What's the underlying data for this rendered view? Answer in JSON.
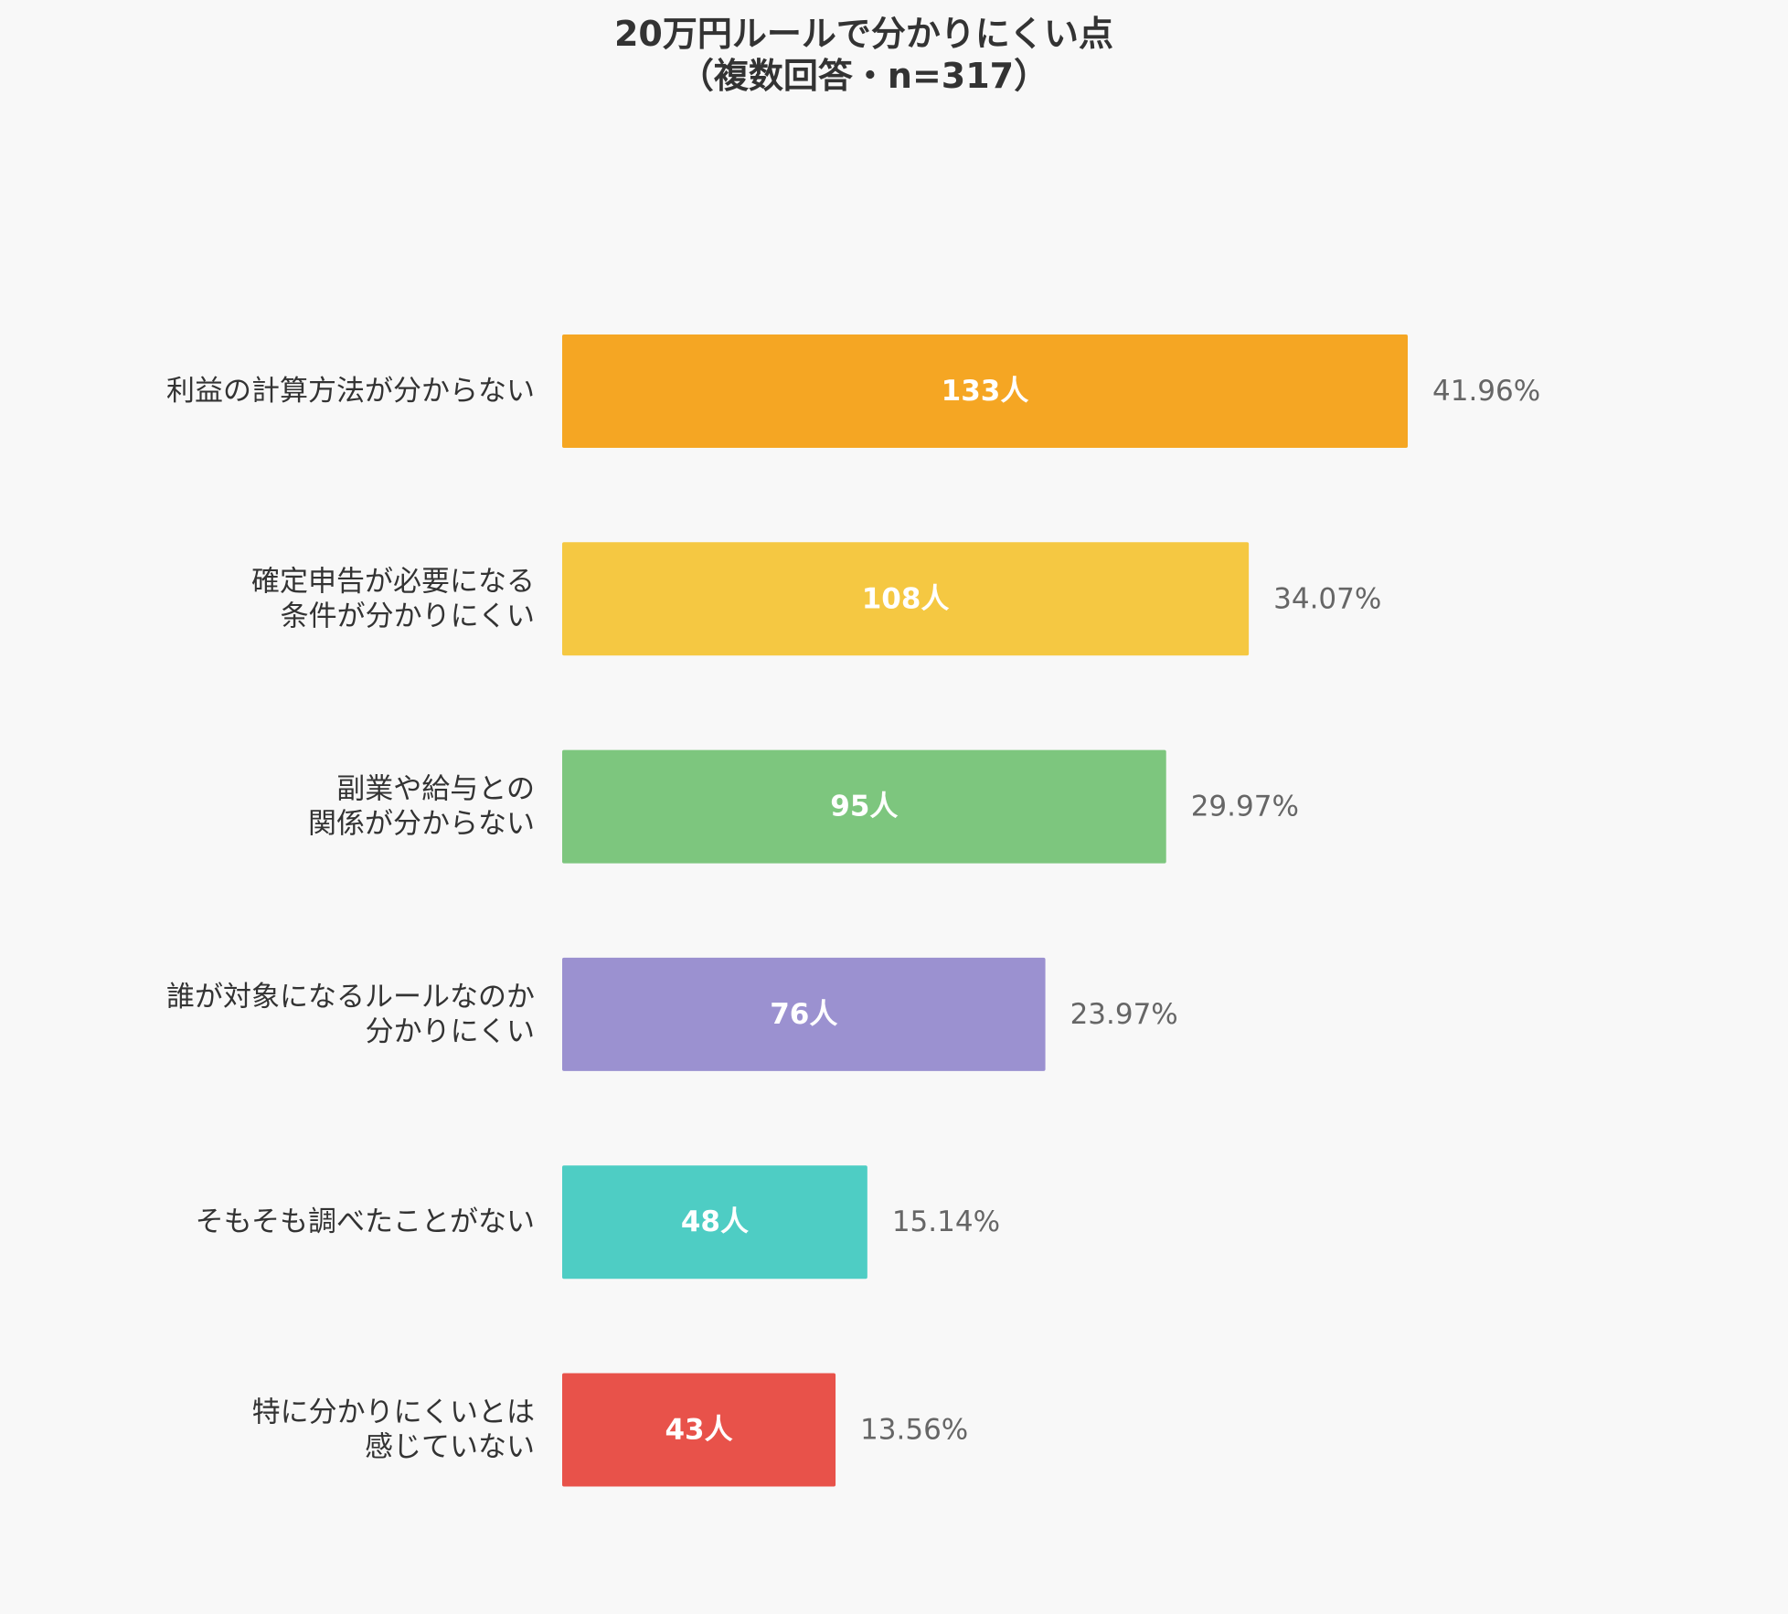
{
  "chart_data": {
    "type": "bar",
    "orientation": "horizontal",
    "title": "20万円ルールで分かりにくい点",
    "subtitle": "（複数回答・n=317）",
    "xlabel": "",
    "ylabel": "",
    "grid": false,
    "legend": "none",
    "unit": "人",
    "categories": [
      "利益の計算方法が分からない",
      "確定申告が必要になる\n条件が分かりにくい",
      "副業や給与との\n関係が分からない",
      "誰が対象になるルールなのか\n分かりにくい",
      "そもそも調べたことがない",
      "特に分かりにくいとは\n感じていない"
    ],
    "values": [
      133,
      108,
      95,
      76,
      48,
      43
    ],
    "value_labels": [
      "133人",
      "108人",
      "95人",
      "76人",
      "48人",
      "43人"
    ],
    "percentages": [
      "41.96%",
      "34.07%",
      "29.97%",
      "23.97%",
      "15.14%",
      "13.56%"
    ],
    "colors": [
      "#f5a623",
      "#f5c842",
      "#7dc67e",
      "#9b91d0",
      "#4ecdc4",
      "#e8524a"
    ],
    "xlim": [
      0,
      133
    ]
  }
}
